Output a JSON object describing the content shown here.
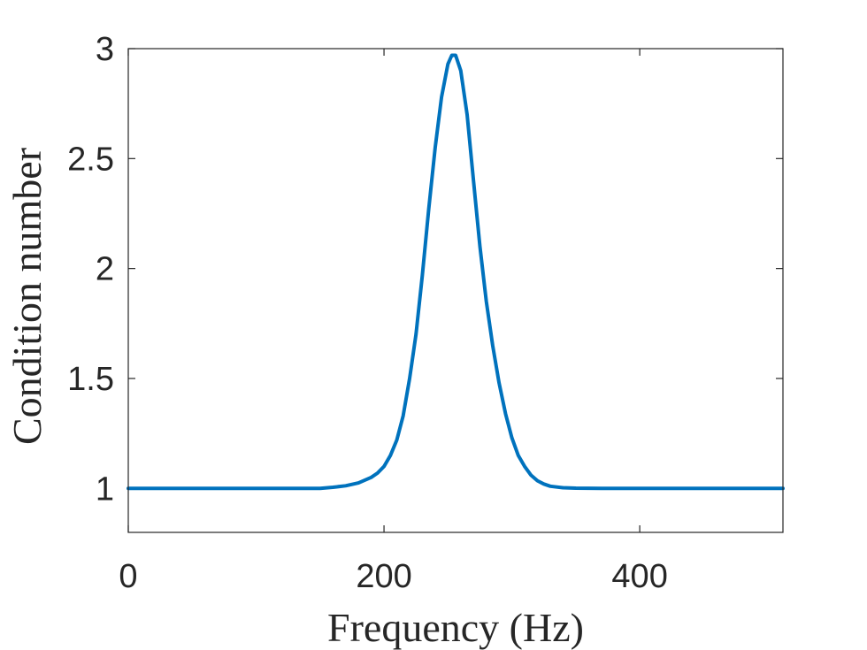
{
  "chart_data": {
    "type": "line",
    "title": "",
    "xlabel": "Frequency (Hz)",
    "ylabel": "Condition number",
    "xlim": [
      0,
      512
    ],
    "ylim": [
      0.8,
      3
    ],
    "xticks": [
      0,
      200,
      400
    ],
    "yticks": [
      1,
      1.5,
      2,
      2.5,
      3
    ],
    "xtick_labels": [
      "0",
      "200",
      "400"
    ],
    "ytick_labels": [
      "1",
      "1.5",
      "2",
      "2.5",
      "3"
    ],
    "grid": false,
    "legend": "none",
    "line_color": "#0072BD",
    "series": [
      {
        "x": [
          0,
          50,
          100,
          150,
          160,
          170,
          180,
          190,
          195,
          200,
          205,
          210,
          215,
          220,
          225,
          230,
          235,
          240,
          245,
          250,
          253,
          256,
          260,
          265,
          270,
          275,
          280,
          285,
          290,
          295,
          300,
          305,
          310,
          315,
          320,
          325,
          330,
          340,
          350,
          370,
          400,
          450,
          512
        ],
        "y": [
          1.0,
          1.0,
          1.0,
          1.0,
          1.005,
          1.012,
          1.025,
          1.05,
          1.07,
          1.1,
          1.15,
          1.22,
          1.33,
          1.5,
          1.7,
          1.97,
          2.27,
          2.55,
          2.78,
          2.93,
          2.97,
          2.97,
          2.9,
          2.7,
          2.4,
          2.1,
          1.85,
          1.65,
          1.48,
          1.34,
          1.23,
          1.15,
          1.1,
          1.06,
          1.035,
          1.02,
          1.01,
          1.003,
          1.001,
          1.0,
          1.0,
          1.0,
          1.0
        ]
      }
    ]
  }
}
